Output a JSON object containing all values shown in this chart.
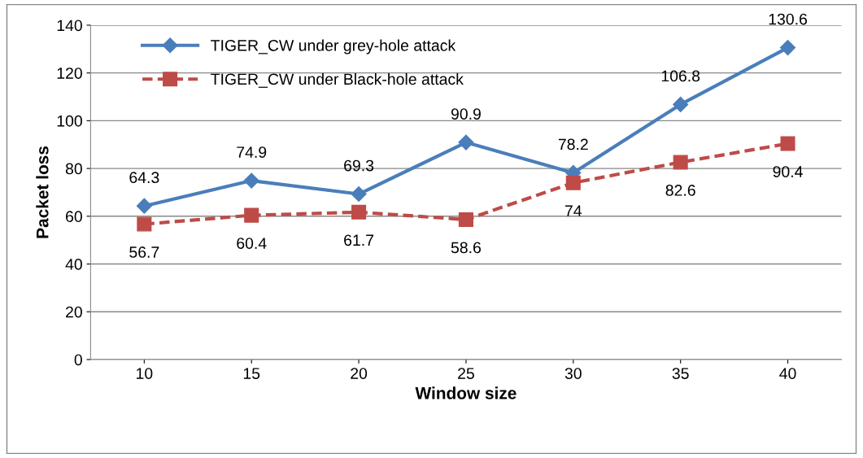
{
  "chart_data": {
    "type": "line",
    "xlabel": "Window size",
    "ylabel": "Packet loss",
    "categories": [
      "10",
      "15",
      "20",
      "25",
      "30",
      "35",
      "40"
    ],
    "series": [
      {
        "name": "TIGER_CW under grey-hole attack",
        "color": "#4a7ebb",
        "values": [
          64.3,
          74.9,
          69.3,
          90.9,
          78.2,
          106.8,
          130.6
        ],
        "marker": "diamond",
        "line_style": "solid"
      },
      {
        "name": "TIGER_CW under Black-hole attack",
        "color": "#be4b48",
        "values": [
          56.7,
          60.4,
          61.7,
          58.6,
          74,
          82.6,
          90.4
        ],
        "marker": "square",
        "line_style": "dashed"
      }
    ],
    "ylim": [
      0,
      140
    ],
    "yticks": [
      0,
      20,
      40,
      60,
      80,
      100,
      120,
      140
    ],
    "grid": "y",
    "legend": "top left",
    "data_labels": true
  }
}
